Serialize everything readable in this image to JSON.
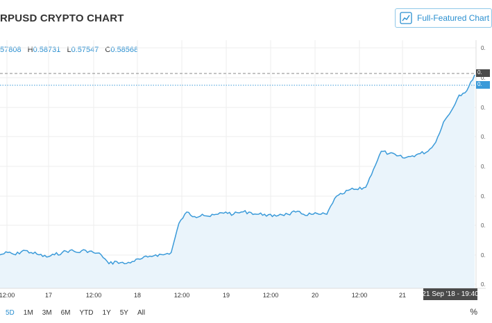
{
  "header": {
    "title": "RPUSD CRYPTO CHART",
    "full_featured_label": "Full-Featured Chart"
  },
  "ohlc": {
    "o_value": "57808",
    "h_label": "H",
    "h_value": "0.58731",
    "l_label": "L",
    "l_value": "0.57547",
    "c_label": "C",
    "c_value": "0.58568"
  },
  "time_axis": {
    "labels": [
      "12:00",
      "17",
      "12:00",
      "18",
      "12:00",
      "19",
      "12:00",
      "20",
      "12:00",
      "21"
    ],
    "crosshair_label": "21 Sep '18 - 19:40"
  },
  "price_axis": {
    "tick_label": "0.",
    "tag_high": "0.",
    "tag_last": "0."
  },
  "range_buttons": [
    {
      "label": "5D",
      "active": true
    },
    {
      "label": "1M",
      "active": false
    },
    {
      "label": "3M",
      "active": false
    },
    {
      "label": "6M",
      "active": false
    },
    {
      "label": "YTD",
      "active": false
    },
    {
      "label": "1Y",
      "active": false
    },
    {
      "label": "5Y",
      "active": false
    },
    {
      "label": "All",
      "active": false
    }
  ],
  "percent_label": "%",
  "colors": {
    "line": "#3a9ad9",
    "area": "#eaf4fb",
    "accent": "#2a8fd0",
    "grid": "#eeeeee",
    "tag_dark": "#4a4a4a"
  },
  "chart_data": {
    "type": "area",
    "series": [
      {
        "values": [
          0.5,
          0.501,
          0.5,
          0.502,
          0.501,
          0.5,
          0.499,
          0.5,
          0.501,
          0.502,
          0.501,
          0.502,
          0.501,
          0.5,
          0.496,
          0.497,
          0.496,
          0.497,
          0.498,
          0.499,
          0.5,
          0.5,
          0.501,
          0.514,
          0.519,
          0.517,
          0.518,
          0.517,
          0.518,
          0.519,
          0.518,
          0.519,
          0.519,
          0.518,
          0.518,
          0.517,
          0.518,
          0.518,
          0.519,
          0.518,
          0.518,
          0.518,
          0.518,
          0.525,
          0.527,
          0.529,
          0.529,
          0.53,
          0.538,
          0.546,
          0.545,
          0.544,
          0.543,
          0.544,
          0.545,
          0.546,
          0.55,
          0.559,
          0.564,
          0.571,
          0.573,
          0.58
        ]
      }
    ]
  }
}
